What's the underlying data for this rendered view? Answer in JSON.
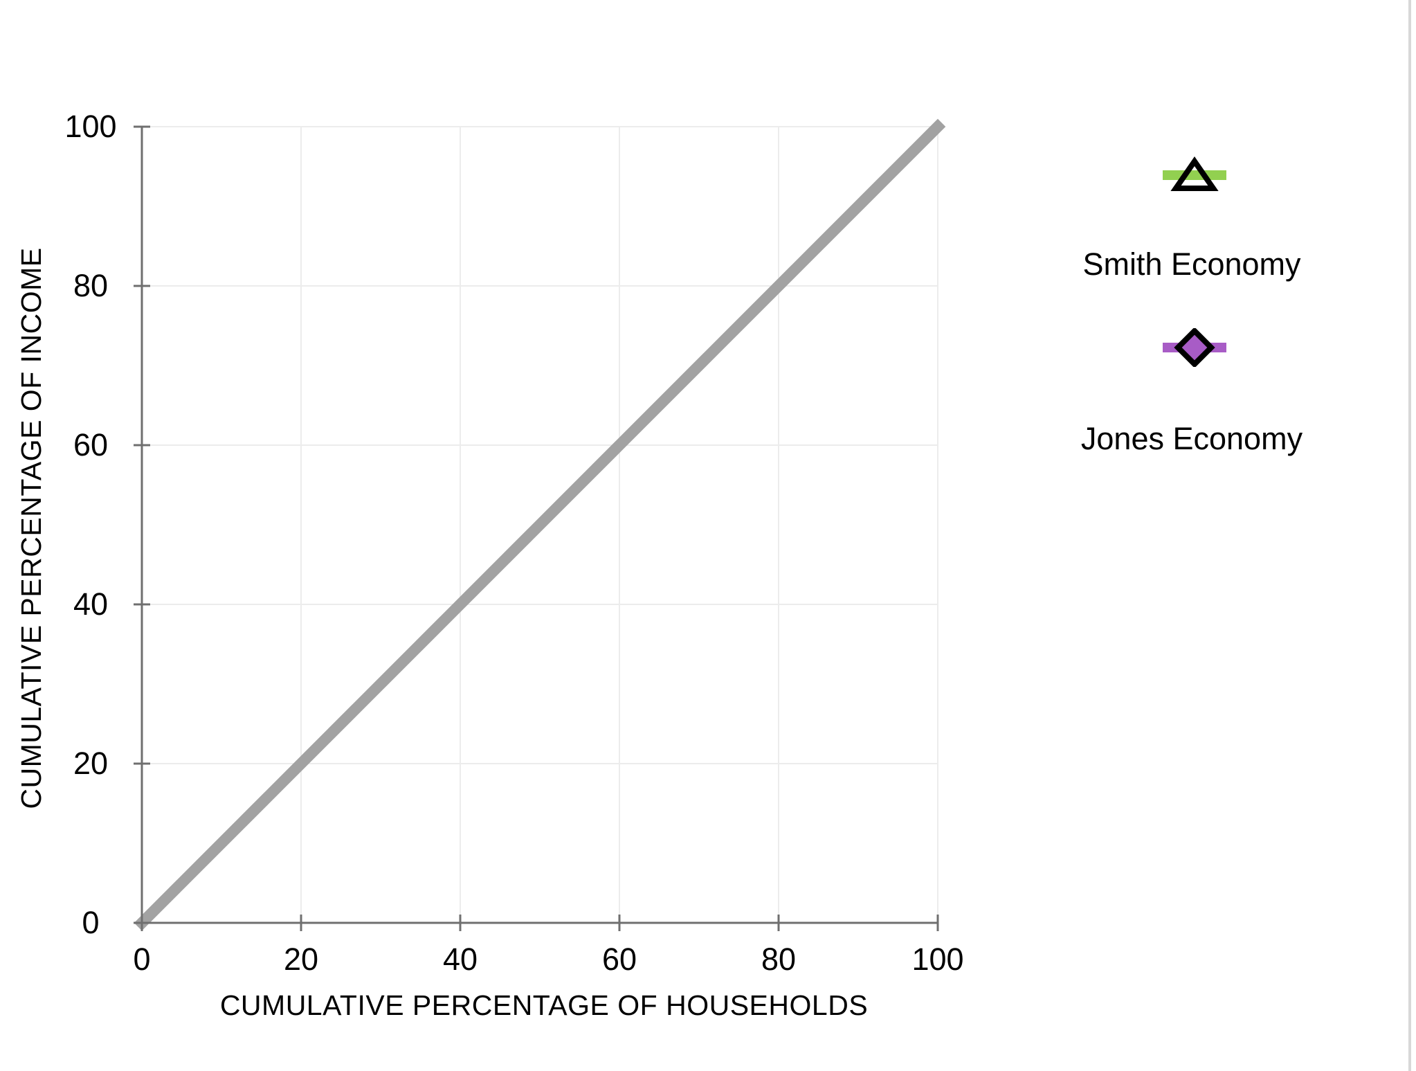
{
  "chart_data": {
    "type": "line",
    "title": "",
    "xlabel": "CUMULATIVE PERCENTAGE OF HOUSEHOLDS",
    "ylabel": "CUMULATIVE PERCENTAGE OF INCOME",
    "xlim": [
      0,
      100
    ],
    "ylim": [
      0,
      100
    ],
    "x_ticks": [
      0,
      20,
      40,
      60,
      80,
      100
    ],
    "y_ticks": [
      0,
      20,
      40,
      60,
      80,
      100
    ],
    "grid": true,
    "series": [
      {
        "name": "",
        "points": [
          [
            0,
            0
          ],
          [
            100,
            100
          ]
        ],
        "color": "#a2a2a2",
        "width": 16
      }
    ],
    "legend": {
      "position": "right",
      "entries": [
        {
          "label": "Smith Economy",
          "marker": "triangle",
          "line_color": "#92d050",
          "marker_fill": "none",
          "marker_stroke": "#000000"
        },
        {
          "label": "Jones Economy",
          "marker": "diamond",
          "line_color": "#a85cc6",
          "marker_fill": "#a85cc6",
          "marker_stroke": "#000000"
        }
      ]
    },
    "colors": {
      "axis": "#6f6f6f",
      "grid": "#ececec",
      "text": "#000000",
      "plot_bg": "#ffffff",
      "page_border": "#d8d8d8"
    }
  }
}
